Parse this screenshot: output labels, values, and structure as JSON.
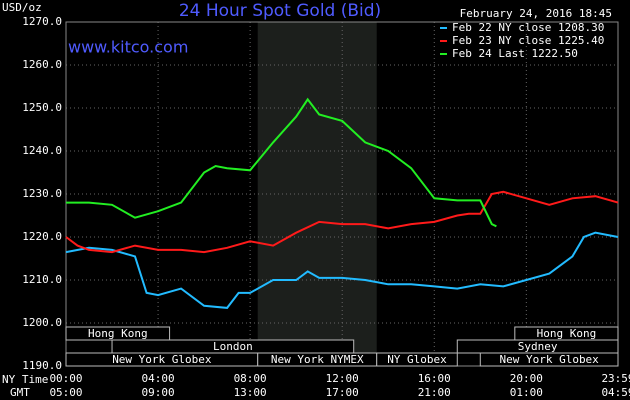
{
  "chart_data": {
    "type": "line",
    "title": "24 Hour Spot Gold (Bid)",
    "subtitle": "February 24, 2016 18:45",
    "source": "www.kitco.com",
    "y_label": "USD/oz",
    "x_label": "NY Time",
    "x2_label": "GMT",
    "xlim": [
      0,
      23.983
    ],
    "ylim": [
      1190,
      1270
    ],
    "yticks": [
      {
        "value": 1190,
        "label": "1190.0"
      },
      {
        "value": 1200,
        "label": "1200.0"
      },
      {
        "value": 1210,
        "label": "1210.0"
      },
      {
        "value": 1220,
        "label": "1220.0"
      },
      {
        "value": 1230,
        "label": "1230.0"
      },
      {
        "value": 1240,
        "label": "1240.0"
      },
      {
        "value": 1250,
        "label": "1250.0"
      },
      {
        "value": 1260,
        "label": "1260.0"
      },
      {
        "value": 1270,
        "label": "1270.0"
      }
    ],
    "xticks": [
      {
        "value": 0,
        "label": "00:00"
      },
      {
        "value": 4,
        "label": "04:00"
      },
      {
        "value": 8,
        "label": "08:00"
      },
      {
        "value": 12,
        "label": "12:00"
      },
      {
        "value": 16,
        "label": "16:00"
      },
      {
        "value": 20,
        "label": "20:00"
      },
      {
        "value": 23.983,
        "label": "23:59"
      }
    ],
    "x2ticks": [
      "05:00",
      "09:00",
      "13:00",
      "17:00",
      "21:00",
      "01:00",
      "04:59"
    ],
    "grid": true,
    "shade": [
      8.33,
      13.5
    ],
    "sessions": [
      {
        "name": "Hong Kong",
        "start": 0,
        "end": 4.5,
        "row": 0
      },
      {
        "name": "Hong Kong",
        "start": 19.5,
        "end": 23.983,
        "row": 0
      },
      {
        "name": "London",
        "start": 2,
        "end": 12.5,
        "row": 1
      },
      {
        "name": "Sydney",
        "start": 17,
        "end": 23.983,
        "row": 1
      },
      {
        "name": "New York Globex",
        "start": 0,
        "end": 8.33,
        "row": 2
      },
      {
        "name": "New York NYMEX",
        "start": 8.33,
        "end": 13.5,
        "row": 2
      },
      {
        "name": "NY Globex",
        "start": 13.5,
        "end": 17,
        "row": 2
      },
      {
        "name": "New York Globex",
        "start": 18,
        "end": 23.983,
        "row": 2
      }
    ],
    "series": [
      {
        "name": "Feb 22 NY close 1208.30",
        "color": "#22bbff",
        "x": [
          0,
          1,
          2,
          3,
          3.5,
          4,
          5,
          6,
          7,
          7.5,
          8,
          9,
          10,
          10.5,
          11,
          12,
          13,
          14,
          15,
          16,
          17,
          18,
          19,
          20,
          21,
          22,
          22.5,
          23,
          23.983
        ],
        "values": [
          1216.5,
          1217.5,
          1217,
          1215.5,
          1207,
          1206.5,
          1208,
          1204,
          1203.5,
          1207,
          1207,
          1210,
          1210,
          1212,
          1210.5,
          1210.5,
          1210,
          1209,
          1209,
          1208.5,
          1208,
          1209,
          1208.5,
          1210,
          1211.5,
          1215.5,
          1220,
          1221,
          1220
        ]
      },
      {
        "name": "Feb 23 NY close 1225.40",
        "color": "#ff1a1a",
        "x": [
          0,
          0.5,
          1,
          2,
          3,
          4,
          5,
          6,
          7,
          8,
          9,
          10,
          11,
          12,
          13,
          14,
          15,
          16,
          17,
          17.5,
          18,
          18.5,
          19,
          20,
          21,
          22,
          23,
          23.983
        ],
        "values": [
          1220,
          1218,
          1217,
          1216.5,
          1218,
          1217,
          1217,
          1216.5,
          1217.5,
          1219,
          1218,
          1221,
          1223.5,
          1223,
          1223,
          1222,
          1223,
          1223.5,
          1225,
          1225.4,
          1225.4,
          1230,
          1230.5,
          1229,
          1227.5,
          1229,
          1229.5,
          1228
        ]
      },
      {
        "name": "Feb 24 Last 1222.50",
        "color": "#22ee22",
        "x": [
          0,
          1,
          2,
          3,
          4,
          5,
          6,
          6.5,
          7,
          8,
          9,
          10,
          10.5,
          11,
          12,
          13,
          14,
          15,
          16,
          17,
          18,
          18.5,
          18.7
        ],
        "values": [
          1228,
          1228,
          1227.5,
          1224.5,
          1226,
          1228,
          1235,
          1236.5,
          1236,
          1235.5,
          1242,
          1248,
          1252,
          1248.5,
          1247,
          1242,
          1240,
          1236,
          1229,
          1228.5,
          1228.5,
          1223,
          1222.5
        ]
      }
    ]
  }
}
